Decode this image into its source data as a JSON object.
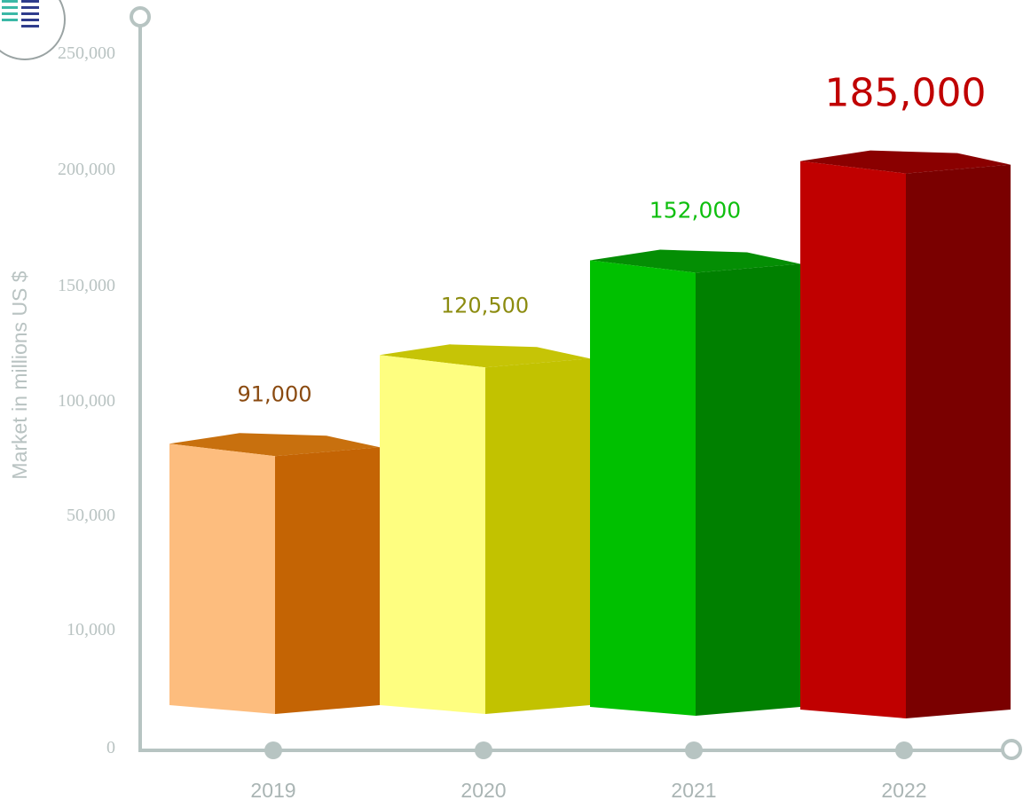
{
  "colors": {
    "axis": "#b7c4c2",
    "tick_text": "#b9c3c2",
    "year_text": "#aab5b4"
  },
  "logo": {
    "icon": "bar-chart-logo-icon"
  },
  "chart_data": {
    "type": "bar",
    "style": "3d-columns",
    "ylabel": "Market in millions US $",
    "y_ticks": [
      "0",
      "10,000",
      "50,000",
      "100,000",
      "150,000",
      "200,000",
      "250,000"
    ],
    "categories": [
      "2019",
      "2020",
      "2021",
      "2022"
    ],
    "values": [
      91000,
      120500,
      152000,
      185000
    ],
    "data_labels": [
      "91,000",
      "120,500",
      "152,000",
      "185,000"
    ],
    "legend": "none",
    "grid": false,
    "bar_colors": [
      {
        "front": "#fdbd7e",
        "side": "#c46404",
        "top": "#c8700e",
        "label": "#8a4a10"
      },
      {
        "front": "#fefe80",
        "side": "#c2c200",
        "top": "#c6c406",
        "label": "#8c8c10"
      },
      {
        "front": "#00c000",
        "side": "#008000",
        "top": "#048e04",
        "label": "#0fbf0f"
      },
      {
        "front": "#c00000",
        "side": "#7a0000",
        "top": "#8a0000",
        "label": "#c00000"
      }
    ]
  }
}
